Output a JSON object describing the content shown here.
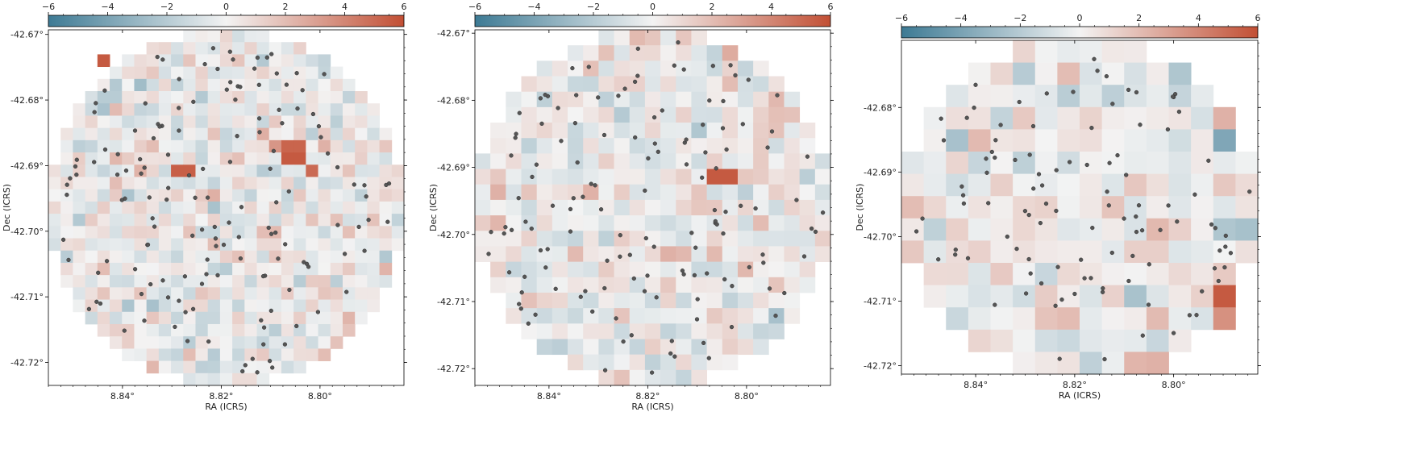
{
  "figure": {
    "colorscale": {
      "negative": "#3d7a94",
      "mid": "#f3f3f3",
      "positive": "#c24f34"
    },
    "star_color": "#555555"
  },
  "chart_data": [
    {
      "type": "heatmap",
      "title": "",
      "xlabel": "RA (ICRS)",
      "ylabel": "Dec (ICRS)",
      "xlim": [
        8.855,
        8.783
      ],
      "ylim": [
        -42.7235,
        -42.6693
      ],
      "xticks": [
        "8.84°",
        "8.82°",
        "8.80°"
      ],
      "xtick_values": [
        8.84,
        8.82,
        8.8
      ],
      "yticks": [
        "-42.67°",
        "-42.68°",
        "-42.69°",
        "-42.70°",
        "-42.71°",
        "-42.72°"
      ],
      "ytick_values": [
        -42.67,
        -42.68,
        -42.69,
        -42.7,
        -42.71,
        -42.72
      ],
      "grid": false,
      "colorbar": {
        "position": "top",
        "vmin": -6,
        "vmax": 6,
        "ticks": [
          "−6",
          "−4",
          "−2",
          "0",
          "2",
          "4",
          "6"
        ],
        "tick_values": [
          -6,
          -4,
          -2,
          0,
          2,
          4,
          6
        ]
      },
      "bins": {
        "nx": 29,
        "ny": 29,
        "footprint": "circle",
        "seed": 11
      },
      "hot_cells": [
        {
          "col": 4,
          "row": 2,
          "value": 5.6
        },
        {
          "col": 10,
          "row": 11,
          "value": 5.4
        },
        {
          "col": 11,
          "row": 11,
          "value": 5.4
        },
        {
          "col": 19,
          "row": 9,
          "value": 5.2
        },
        {
          "col": 20,
          "row": 9,
          "value": 5.2
        },
        {
          "col": 19,
          "row": 10,
          "value": 5.6
        },
        {
          "col": 20,
          "row": 10,
          "value": 5.6
        },
        {
          "col": 21,
          "row": 11,
          "value": 5.0
        },
        {
          "col": 18,
          "row": 9,
          "value": 3.4
        },
        {
          "col": 22,
          "row": 9,
          "value": 2.4
        }
      ],
      "stars": {
        "count": 150,
        "seed": 101
      }
    },
    {
      "type": "heatmap",
      "title": "",
      "xlabel": "RA (ICRS)",
      "ylabel": "Dec (ICRS)",
      "xlim": [
        8.855,
        8.783
      ],
      "ylim": [
        -42.7225,
        -42.6695
      ],
      "xticks": [
        "8.84°",
        "8.82°",
        "8.80°"
      ],
      "xtick_values": [
        8.84,
        8.82,
        8.8
      ],
      "yticks": [
        "-42.67°",
        "-42.68°",
        "-42.69°",
        "-42.70°",
        "-42.71°",
        "-42.72°"
      ],
      "ytick_values": [
        -42.67,
        -42.68,
        -42.69,
        -42.7,
        -42.71,
        -42.72
      ],
      "grid": false,
      "colorbar": {
        "position": "top",
        "vmin": -6,
        "vmax": 6,
        "ticks": [
          "−6",
          "−4",
          "−2",
          "0",
          "2",
          "4",
          "6"
        ],
        "tick_values": [
          -6,
          -4,
          -2,
          0,
          2,
          4,
          6
        ]
      },
      "bins": {
        "nx": 23,
        "ny": 23,
        "footprint": "circle",
        "seed": 23
      },
      "hot_cells": [
        {
          "col": 15,
          "row": 9,
          "value": 5.6
        },
        {
          "col": 16,
          "row": 9,
          "value": 5.6
        },
        {
          "col": 16,
          "row": 1,
          "value": 2.6
        },
        {
          "col": 1,
          "row": 10,
          "value": 2.4
        },
        {
          "col": 12,
          "row": 14,
          "value": 2.4
        },
        {
          "col": 18,
          "row": 12,
          "value": 2.0
        }
      ],
      "stars": {
        "count": 135,
        "seed": 202
      }
    },
    {
      "type": "heatmap",
      "title": "",
      "xlabel": "RA (ICRS)",
      "ylabel": "Dec (ICRS)",
      "xlim": [
        8.855,
        8.783
      ],
      "ylim": [
        -42.7213,
        -42.6696
      ],
      "xticks": [
        "8.84°",
        "8.82°",
        "8.80°"
      ],
      "xtick_values": [
        8.84,
        8.82,
        8.8
      ],
      "yticks": [
        "-42.68°",
        "-42.69°",
        "-42.70°",
        "-42.71°",
        "-42.72°"
      ],
      "ytick_values": [
        -42.68,
        -42.69,
        -42.7,
        -42.71,
        -42.72
      ],
      "grid": false,
      "colorbar": {
        "position": "top",
        "vmin": -6,
        "vmax": 6,
        "ticks": [
          "−6",
          "−4",
          "−2",
          "0",
          "2",
          "4",
          "6"
        ],
        "tick_values": [
          -6,
          -4,
          -2,
          0,
          2,
          4,
          6
        ]
      },
      "bins": {
        "nx": 16,
        "ny": 15,
        "footprint": "circle",
        "seed": 37
      },
      "hot_cells": [
        {
          "col": 14,
          "row": 11,
          "value": 5.6
        },
        {
          "col": 14,
          "row": 12,
          "value": 3.6
        },
        {
          "col": 14,
          "row": 4,
          "value": -3.8
        },
        {
          "col": 14,
          "row": 3,
          "value": 2.4
        },
        {
          "col": 11,
          "row": 14,
          "value": 2.4
        }
      ],
      "stars": {
        "count": 105,
        "seed": 303
      }
    }
  ]
}
